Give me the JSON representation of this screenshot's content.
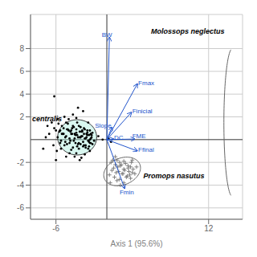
{
  "chart_data": {
    "type": "scatter",
    "xlabel": "Axis 1 (95.6%)",
    "xlim": [
      -9,
      16
    ],
    "ylim": [
      -7,
      11
    ],
    "xticks": [
      -6,
      12
    ],
    "yticks": [
      -6,
      -4,
      -2,
      2,
      4,
      6,
      8
    ],
    "grid": true,
    "series": [
      {
        "type": "scatter",
        "color": "#000000",
        "marker": "circle",
        "x": [
          -7.5,
          -7.2,
          -7.0,
          -6.8,
          -6.5,
          -6.3,
          -6.2,
          -6.2,
          -6.0,
          -6.0,
          -5.9,
          -5.8,
          -5.8,
          -5.7,
          -5.6,
          -5.5,
          -5.5,
          -5.4,
          -5.4,
          -5.3,
          -5.3,
          -5.2,
          -5.1,
          -5.1,
          -5.0,
          -5.0,
          -4.9,
          -4.9,
          -4.8,
          -4.8,
          -4.8,
          -4.7,
          -4.7,
          -4.6,
          -4.6,
          -4.5,
          -4.5,
          -4.4,
          -4.4,
          -4.4,
          -4.3,
          -4.3,
          -4.2,
          -4.2,
          -4.2,
          -4.1,
          -4.1,
          -4.0,
          -4.0,
          -4.0,
          -3.9,
          -3.9,
          -3.8,
          -3.8,
          -3.8,
          -3.7,
          -3.7,
          -3.6,
          -3.6,
          -3.6,
          -3.6,
          -3.5,
          -3.5,
          -3.5,
          -3.4,
          -3.4,
          -3.4,
          -3.3,
          -3.3,
          -3.3,
          -3.2,
          -3.2,
          -3.2,
          -3.1,
          -3.1,
          -3.1,
          -3.0,
          -3.0,
          -3.0,
          -2.9,
          -2.9,
          -2.9,
          -2.8,
          -2.8,
          -2.8,
          -2.7,
          -2.7,
          -2.7,
          -2.6,
          -2.6,
          -2.6,
          -2.5,
          -2.5,
          -2.5,
          -2.4,
          -2.4,
          -2.3,
          -2.3,
          -2.3,
          -2.2,
          -2.2,
          -2.2,
          -2.1,
          -2.1,
          -2.1,
          -2.0,
          -2.0,
          -2.0,
          -2.0,
          -1.9,
          -1.9,
          -1.9,
          -1.8,
          -1.8,
          -1.7,
          -1.7,
          -1.5,
          -1.0,
          -0.5,
          0.2,
          0.5
        ],
        "values": [
          -0.8,
          0.2,
          1.2,
          0.5,
          1.5,
          -0.5,
          3.8,
          1.0,
          0.8,
          -1.8,
          -1.0,
          0.2,
          1.8,
          1.4,
          0.7,
          0.8,
          -0.3,
          -0.1,
          -0.8,
          1.2,
          0.5,
          0.5,
          0.5,
          1.0,
          2.0,
          -0.5,
          -0.2,
          0.2,
          1.5,
          0.3,
          -1.5,
          0.9,
          -0.4,
          1.4,
          0.9,
          1.8,
          0.8,
          0.1,
          -0.3,
          -1.2,
          0.7,
          -0.1,
          0.8,
          0.5,
          -0.9,
          1.0,
          0.5,
          1.2,
          -0.7,
          2.2,
          -0.1,
          1.1,
          0.5,
          0.1,
          -1.5,
          0.4,
          -0.3,
          0.9,
          0.6,
          -1.2,
          1.9,
          1.5,
          -0.6,
          0.4,
          0.2,
          -0.4,
          2.8,
          -0.3,
          1.2,
          -0.8,
          0.7,
          0.2,
          -1.8,
          1.1,
          -0.4,
          0.2,
          0.3,
          0.7,
          -1.6,
          0.8,
          0.3,
          0.7,
          -0.2,
          -0.6,
          2.5,
          0.5,
          1.0,
          -0.5,
          0.9,
          0.1,
          -1.3,
          -0.5,
          -0.7,
          0.1,
          0.2,
          0.5,
          0.6,
          0.4,
          0.8,
          -0.1,
          -0.8,
          1.5,
          0.4,
          -0.2,
          -0.6,
          0.8,
          -0.3,
          0.0,
          -1.0,
          -0.3,
          0.5,
          0.1,
          0.2,
          0.4,
          0.6,
          -0.4,
          -0.1,
          0.3,
          0.0,
          0.1,
          -0.2
        ]
      },
      {
        "type": "scatter",
        "color": "#777777",
        "marker": "cross",
        "x": [
          0.3,
          0.4,
          0.5,
          0.6,
          0.7,
          0.8,
          0.9,
          1.0,
          1.0,
          1.1,
          1.2,
          1.2,
          1.3,
          1.4,
          1.5,
          1.5,
          1.6,
          1.6,
          1.7,
          1.8,
          1.9,
          2.0,
          2.0,
          2.0,
          2.1,
          2.2,
          2.3,
          2.4,
          2.5,
          2.5,
          2.6,
          2.7,
          2.8,
          2.8,
          2.9,
          3.0,
          3.0,
          3.1,
          3.3,
          3.5
        ],
        "values": [
          -3.1,
          -3.8,
          -2.0,
          -2.7,
          -1.8,
          -2.5,
          -3.3,
          -2.2,
          -1.5,
          -2.9,
          -1.8,
          -3.6,
          -2.4,
          -2.8,
          -2.0,
          -3.5,
          -2.3,
          -4.0,
          -2.2,
          -3.0,
          -3.0,
          -2.6,
          -1.9,
          -3.8,
          -2.7,
          -2.1,
          -3.3,
          -3.2,
          -2.5,
          -2.3,
          -2.8,
          -3.1,
          -2.4,
          -3.4,
          -2.0,
          -2.9,
          -1.8,
          -2.6,
          -3.0,
          -2.4
        ]
      }
    ],
    "vectors": {
      "color": "#2255cc",
      "items": [
        {
          "name": "BW",
          "x": 0.3,
          "y": 9.0,
          "label_x": -0.6,
          "label_y": 9.2
        },
        {
          "name": "Fmax",
          "x": 3.6,
          "y": 4.9,
          "label_x": 3.7,
          "label_y": 5.0
        },
        {
          "name": "Finicial",
          "x": 2.9,
          "y": 2.4,
          "label_x": 3.0,
          "label_y": 2.5
        },
        {
          "name": "Slope",
          "x": 0.6,
          "y": 1.1,
          "label_x": -1.4,
          "label_y": 1.2
        },
        {
          "name": "DC",
          "x": 0.8,
          "y": 0.05,
          "label_x": 0.85,
          "label_y": 0.2
        },
        {
          "name": "FME",
          "x": 3.3,
          "y": 0.05,
          "label_x": 3.0,
          "label_y": 0.3
        },
        {
          "name": "Ffinal",
          "x": 3.6,
          "y": -1.0,
          "label_x": 3.7,
          "label_y": -0.9
        },
        {
          "name": "Fmin",
          "x": 2.1,
          "y": -4.3,
          "label_x": 1.5,
          "label_y": -4.6
        }
      ]
    },
    "ellipses": [
      {
        "x": -3.5,
        "y": 0.2,
        "rx": 2.3,
        "ry": 1.55,
        "angle": 0,
        "color": "#aaeedd"
      },
      {
        "x": 1.8,
        "y": -2.8,
        "rx": 2.2,
        "ry": 1.2,
        "angle": 12
      }
    ],
    "arcs": [
      {
        "x": 14.8,
        "y": 1.5,
        "width": 2.0,
        "height": 13.0,
        "theta1": 100,
        "theta2": 260
      }
    ],
    "annotations": [
      {
        "text": "Molossops neglectus",
        "x": 5.2,
        "y": 9.5
      },
      {
        "text": "Promops nasutus",
        "x": 4.3,
        "y": -3.2
      },
      {
        "text": "centralis",
        "x": -8.8,
        "y": 1.8
      }
    ]
  }
}
